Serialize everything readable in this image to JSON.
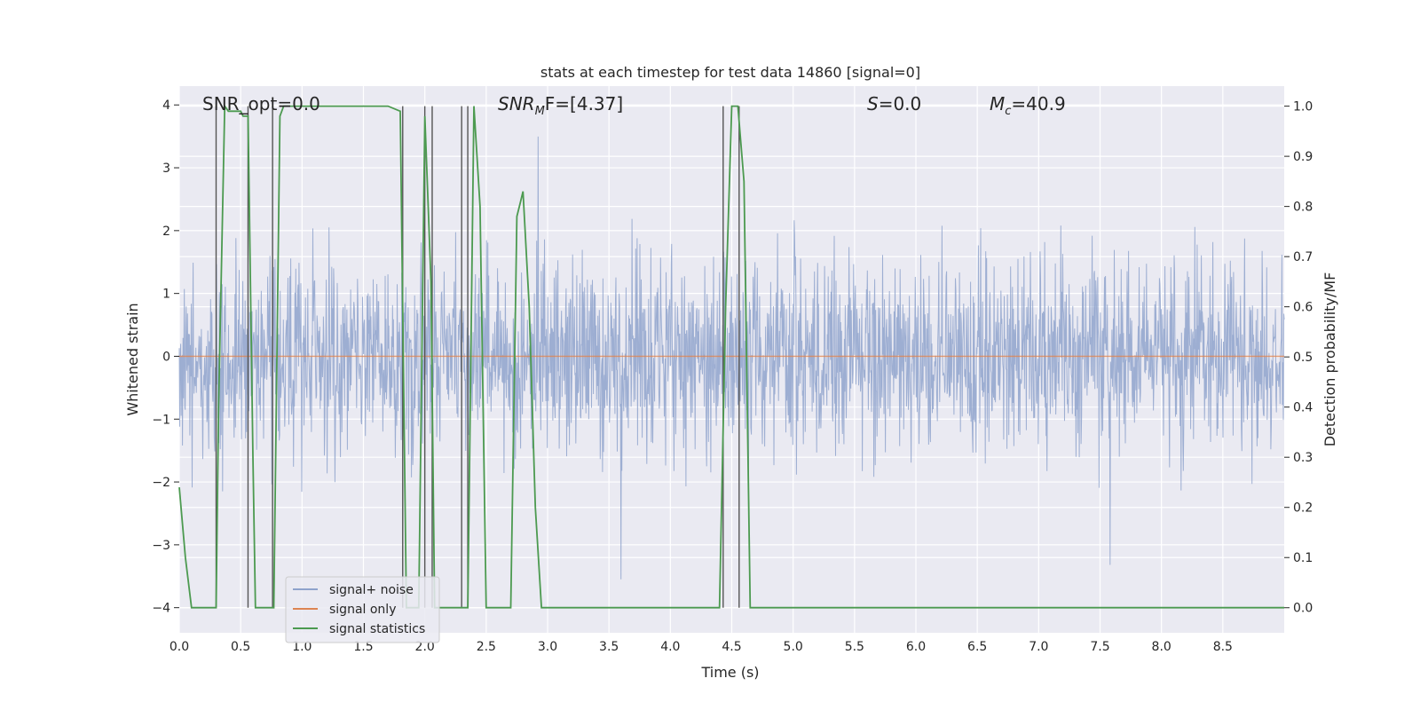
{
  "chart_data": {
    "type": "line",
    "title": "stats at each timestep for test data 14860 [signal=0]",
    "xlabel": "Time (s)",
    "ylabel": "Whitened strain",
    "y2label": "Detection probability/MF",
    "xlim": [
      0.0,
      9.0
    ],
    "ylim": [
      -4.4,
      4.3
    ],
    "y2lim": [
      -0.05,
      1.04
    ],
    "x_ticks": [
      "0.0",
      "0.5",
      "1.0",
      "1.5",
      "2.0",
      "2.5",
      "3.0",
      "3.5",
      "4.0",
      "4.5",
      "5.0",
      "5.5",
      "6.0",
      "6.5",
      "7.0",
      "7.5",
      "8.0",
      "8.5"
    ],
    "y_ticks": [
      "4",
      "3",
      "2",
      "1",
      "0",
      "−1",
      "−2",
      "−3",
      "−4"
    ],
    "y2_ticks": [
      "1.0",
      "0.9",
      "0.8",
      "0.7",
      "0.6",
      "0.5",
      "0.4",
      "0.3",
      "0.2",
      "0.1",
      "0.0"
    ],
    "annotations": {
      "snr_opt": "SNR_opt=0.0",
      "snr_mf_sym": "SNR",
      "snr_mf_sub": "M",
      "snr_mf_rest": "F=[4.37]",
      "s_sym": "S",
      "s_rest": "=0.0",
      "mc_sym": "M",
      "mc_sub": "c",
      "mc_rest": "=40.9"
    },
    "series": [
      {
        "name": "signal+ noise",
        "color": "#8fa3cc",
        "description": "whitened noise, roughly within ±2.5 with peaks to ±3.9"
      },
      {
        "name": "signal only",
        "color": "#dd8452",
        "values_constant": 0.0
      },
      {
        "name": "signal statistics",
        "color": "#4c9a50",
        "x": [
          0.0,
          0.05,
          0.1,
          0.15,
          0.2,
          0.25,
          0.3,
          0.32,
          0.37,
          0.4,
          0.5,
          0.52,
          0.56,
          0.6,
          0.62,
          0.66,
          0.72,
          0.77,
          0.82,
          0.85,
          0.9,
          1.0,
          1.5,
          1.7,
          1.8,
          1.85,
          1.9,
          1.95,
          2.0,
          2.05,
          2.08,
          2.1,
          2.15,
          2.2,
          2.3,
          2.35,
          2.4,
          2.45,
          2.5,
          2.55,
          2.6,
          2.65,
          2.7,
          2.75,
          2.78,
          2.8,
          2.85,
          2.9,
          2.95,
          3.0,
          3.5,
          4.0,
          4.4,
          4.45,
          4.5,
          4.55,
          4.6,
          4.65,
          4.7,
          5.0,
          6.0,
          7.0,
          8.0,
          9.0
        ],
        "values": [
          0.24,
          0.1,
          0.0,
          0.0,
          0.0,
          0.0,
          0.0,
          0.4,
          1.0,
          0.99,
          0.99,
          0.98,
          0.98,
          0.3,
          0.0,
          0.0,
          0.0,
          0.0,
          0.98,
          1.0,
          1.0,
          1.0,
          1.0,
          1.0,
          0.99,
          0.0,
          0.0,
          0.0,
          0.98,
          0.65,
          0.0,
          0.0,
          0.0,
          0.0,
          0.0,
          0.0,
          1.0,
          0.8,
          0.0,
          0.0,
          0.0,
          0.0,
          0.0,
          0.78,
          0.81,
          0.83,
          0.6,
          0.2,
          0.0,
          0.0,
          0.0,
          0.0,
          0.0,
          0.6,
          1.0,
          1.0,
          0.85,
          0.0,
          0.0,
          0.0,
          0.0,
          0.0,
          0.0,
          0.0
        ]
      },
      {
        "name": "peak markers",
        "color": "#555555",
        "x": [
          0.3,
          0.56,
          0.76,
          1.82,
          2.0,
          2.06,
          2.3,
          2.35,
          4.43,
          4.56
        ]
      }
    ],
    "legend": {
      "position": "lower-left",
      "entries": [
        {
          "label": "signal+ noise",
          "color": "#8fa3cc"
        },
        {
          "label": "signal only",
          "color": "#dd8452"
        },
        {
          "label": "signal statistics",
          "color": "#4c9a50"
        }
      ]
    }
  }
}
